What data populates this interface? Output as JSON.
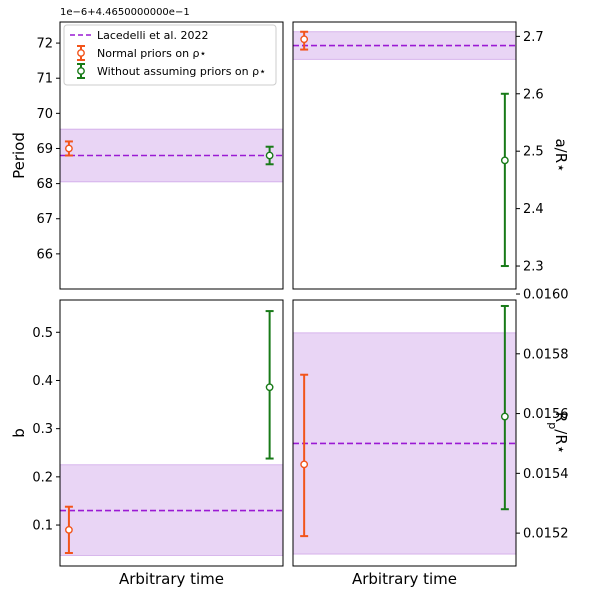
{
  "figure": {
    "offset_text": "1e−6+4.4650000000e−1",
    "legend": {
      "placement": "upper-left",
      "entries": [
        {
          "label": "Lacedelli et al. 2022",
          "style": "dashed-line",
          "color": "#9a1ad4"
        },
        {
          "label": "Normal priors on ρ⋆",
          "style": "errorbar-marker",
          "color": "#f2541b"
        },
        {
          "label": "Without assuming priors on ρ⋆",
          "style": "errorbar-marker",
          "color": "#187a18"
        }
      ]
    }
  },
  "colors": {
    "reference_line": "#9a1ad4",
    "reference_band": "#e9d5f5",
    "reference_band_edge": "#cfa6e8",
    "normal_priors": "#f2541b",
    "no_priors": "#187a18"
  },
  "chart_data": [
    {
      "type": "scatter",
      "panel": "top-left",
      "ylabel": "Period",
      "xlabel": "",
      "ylim": [
        65.0,
        72.6
      ],
      "yticks": [
        66,
        67,
        68,
        69,
        70,
        71,
        72
      ],
      "yaxis_side": "left",
      "grid": false,
      "reference": {
        "value": 68.8,
        "band": [
          68.05,
          69.55
        ]
      },
      "series": [
        {
          "name": "Normal priors on ρ⋆",
          "x": 0.04,
          "y": 69.0,
          "yerr": [
            0.2,
            0.2
          ]
        },
        {
          "name": "Without assuming priors on ρ⋆",
          "x": 0.94,
          "y": 68.8,
          "yerr": [
            0.25,
            0.25
          ]
        }
      ]
    },
    {
      "type": "scatter",
      "panel": "top-right",
      "ylabel": "a/R⋆",
      "xlabel": "",
      "ylim": [
        2.26,
        2.725
      ],
      "yticks": [
        2.3,
        2.4,
        2.5,
        2.6,
        2.7
      ],
      "yaxis_side": "right",
      "grid": false,
      "reference": {
        "value": 2.684,
        "band": [
          2.66,
          2.708
        ]
      },
      "series": [
        {
          "name": "Normal priors on ρ⋆",
          "x": 0.05,
          "y": 2.695,
          "yerr": [
            0.018,
            0.013
          ]
        },
        {
          "name": "Without assuming priors on ρ⋆",
          "x": 0.95,
          "y": 2.484,
          "yerr": [
            0.184,
            0.116
          ]
        }
      ]
    },
    {
      "type": "scatter",
      "panel": "bottom-left",
      "ylabel": "b",
      "xlabel": "Arbitrary time",
      "ylim": [
        0.015,
        0.567
      ],
      "yticks": [
        0.1,
        0.2,
        0.3,
        0.4,
        0.5
      ],
      "yaxis_side": "left",
      "grid": false,
      "reference": {
        "value": 0.13,
        "band": [
          0.037,
          0.225
        ]
      },
      "series": [
        {
          "name": "Normal priors on ρ⋆",
          "x": 0.04,
          "y": 0.09,
          "yerr": [
            0.048,
            0.048
          ]
        },
        {
          "name": "Without assuming priors on ρ⋆",
          "x": 0.94,
          "y": 0.386,
          "yerr": [
            0.148,
            0.158
          ]
        }
      ]
    },
    {
      "type": "scatter",
      "panel": "bottom-right",
      "ylabel": "Rp/R⋆",
      "xlabel": "Arbitrary time",
      "ylim": [
        0.01509,
        0.01598
      ],
      "yticks": [
        0.0152,
        0.0154,
        0.0156,
        0.0158,
        0.016
      ],
      "yaxis_side": "right",
      "grid": false,
      "reference": {
        "value": 0.0155,
        "band": [
          0.01513,
          0.01587
        ]
      },
      "series": [
        {
          "name": "Normal priors on ρ⋆",
          "x": 0.05,
          "y": 0.01543,
          "yerr": [
            0.00024,
            0.0003
          ]
        },
        {
          "name": "Without assuming priors on ρ⋆",
          "x": 0.95,
          "y": 0.01559,
          "yerr": [
            0.00031,
            0.00037
          ]
        }
      ]
    }
  ]
}
